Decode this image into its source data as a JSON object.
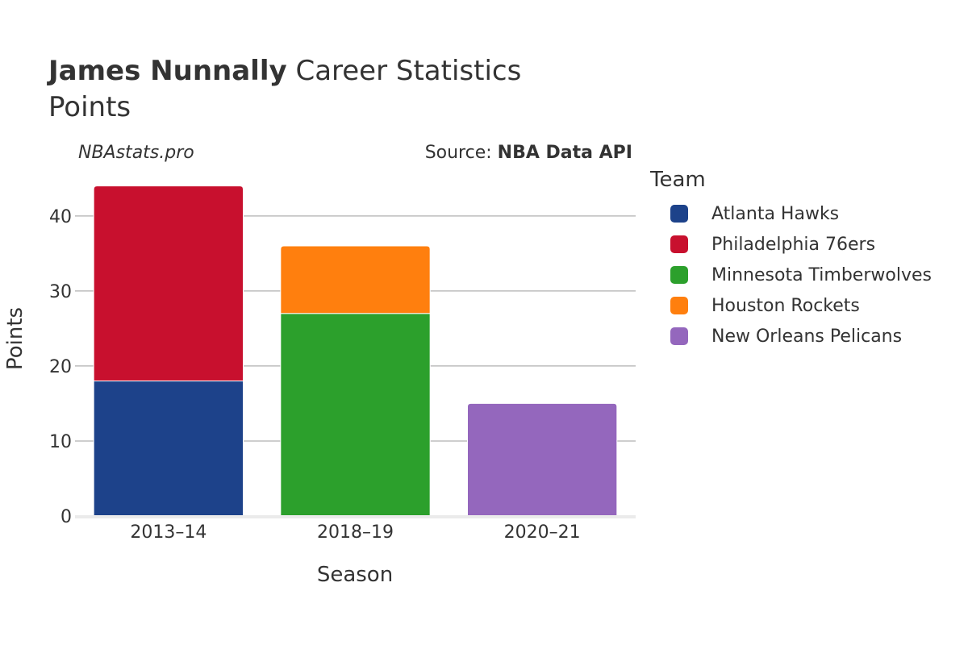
{
  "header": {
    "title_bold": "James Nunnally",
    "title_rest": " Career Statistics",
    "subtitle": "Points"
  },
  "watermark": "NBAstats.pro",
  "source": {
    "prefix": "Source: ",
    "name": "NBA Data API"
  },
  "legend": {
    "title": "Team",
    "items": [
      {
        "label": "Atlanta Hawks",
        "color": "#1d428a"
      },
      {
        "label": "Philadelphia 76ers",
        "color": "#c8102e"
      },
      {
        "label": "Minnesota Timberwolves",
        "color": "#2ca02c"
      },
      {
        "label": "Houston Rockets",
        "color": "#ff7f0e"
      },
      {
        "label": "New Orleans Pelicans",
        "color": "#9467bd"
      }
    ]
  },
  "chart_data": {
    "type": "bar",
    "stacked": true,
    "categories": [
      "2013–14",
      "2018–19",
      "2020–21"
    ],
    "series": [
      {
        "name": "Atlanta Hawks",
        "color": "#1d428a",
        "values": [
          18,
          0,
          0
        ]
      },
      {
        "name": "Philadelphia 76ers",
        "color": "#c8102e",
        "values": [
          26,
          0,
          0
        ]
      },
      {
        "name": "Minnesota Timberwolves",
        "color": "#2ca02c",
        "values": [
          0,
          27,
          0
        ]
      },
      {
        "name": "Houston Rockets",
        "color": "#ff7f0e",
        "values": [
          0,
          9,
          0
        ]
      },
      {
        "name": "New Orleans Pelicans",
        "color": "#9467bd",
        "values": [
          0,
          0,
          15
        ]
      }
    ],
    "title": "James Nunnally Career Statistics",
    "xlabel": "Season",
    "ylabel": "Points",
    "ylim": [
      0,
      46
    ],
    "yticks": [
      0,
      10,
      20,
      30,
      40
    ],
    "grid": true,
    "legend_position": "right"
  }
}
